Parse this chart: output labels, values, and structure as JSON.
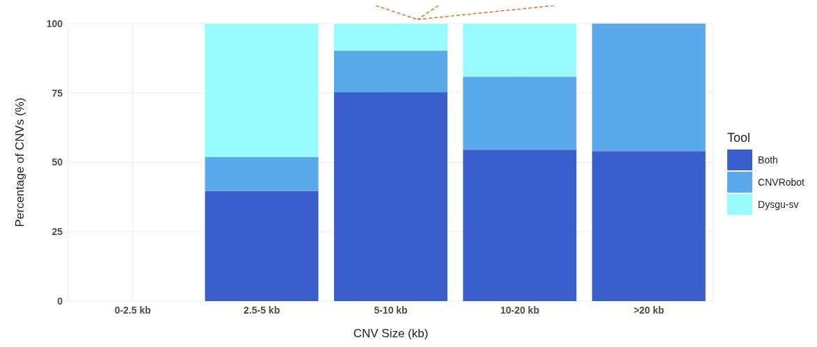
{
  "chart_data": {
    "type": "bar",
    "stacked": true,
    "xlabel": "CNV Size (kb)",
    "ylabel": "Percentage of CNVs (%)",
    "legend_title": "Tool",
    "categories": [
      "0-2.5 kb",
      "2.5-5 kb",
      "5-10 kb",
      "10-20 kb",
      ">20 kb"
    ],
    "series": [
      {
        "name": "Both",
        "color": "#3a5fcd",
        "values": [
          null,
          39.7,
          75.4,
          54.6,
          54.1
        ]
      },
      {
        "name": "CNVRobot",
        "color": "#5aaaeb",
        "values": [
          null,
          12.2,
          14.9,
          26.3,
          45.9
        ]
      },
      {
        "name": "Dysgu-sv",
        "color": "#98fcff",
        "values": [
          null,
          48.1,
          9.7,
          19.1,
          null
        ]
      }
    ],
    "ylim": [
      0,
      100
    ],
    "yticks": [
      0,
      25,
      50,
      75,
      100
    ],
    "grid": true,
    "legend": "right"
  }
}
